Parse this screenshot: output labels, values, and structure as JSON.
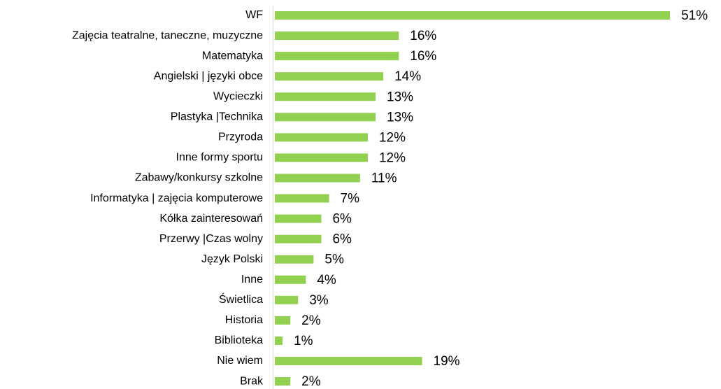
{
  "chart_data": {
    "type": "bar",
    "orientation": "horizontal",
    "color": "#92d050",
    "categories": [
      "WF",
      "Zajęcia teatralne, taneczne, muzyczne",
      "Matematyka",
      "Angielski | języki obce",
      "Wycieczki",
      "Plastyka |Technika",
      "Przyroda",
      "Inne formy sportu",
      "Zabawy/konkursy szkolne",
      "Informatyka | zajęcia komputerowe",
      "Kółka zainteresowań",
      "Przerwy |Czas wolny",
      "Język Polski",
      "Inne",
      "Świetlica",
      "Historia",
      "Biblioteka",
      "Nie wiem",
      "Brak"
    ],
    "values": [
      51,
      16,
      16,
      14,
      13,
      13,
      12,
      12,
      11,
      7,
      6,
      6,
      5,
      4,
      3,
      2,
      1,
      19,
      2
    ],
    "value_labels": [
      "51%",
      "16%",
      "16%",
      "14%",
      "13%",
      "13%",
      "12%",
      "12%",
      "11%",
      "7%",
      "6%",
      "6%",
      "5%",
      "4%",
      "3%",
      "2%",
      "1%",
      "19%",
      "2%"
    ]
  }
}
